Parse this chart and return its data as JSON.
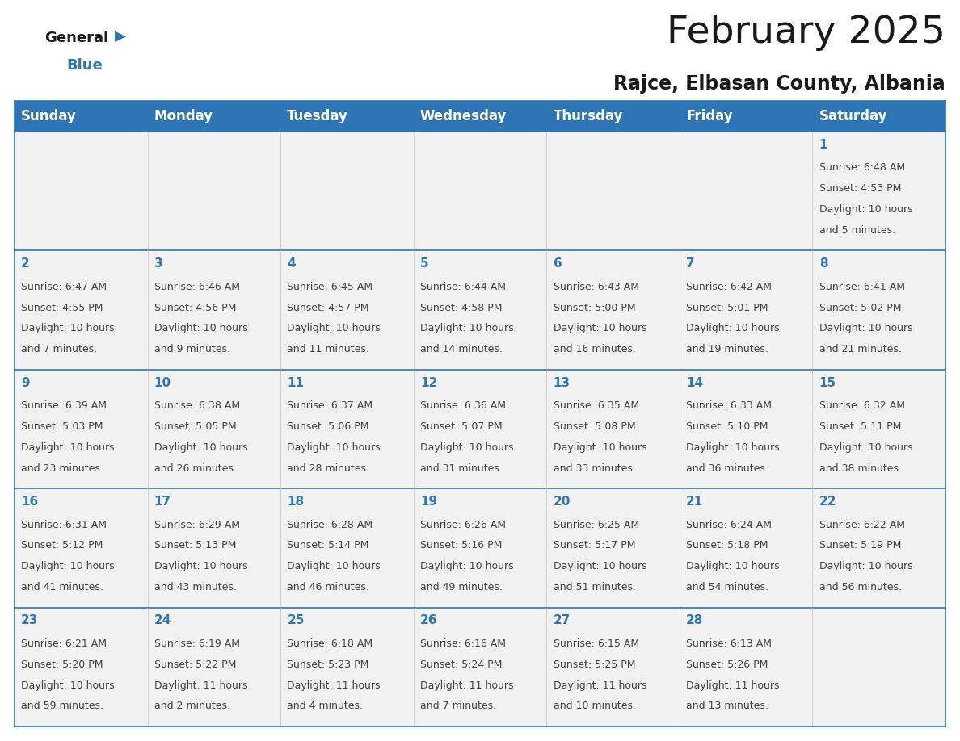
{
  "title": "February 2025",
  "subtitle": "Rajce, Elbasan County, Albania",
  "header_bg": "#2E75B6",
  "header_text_color": "#FFFFFF",
  "cell_border_color": "#2E75B6",
  "day_number_color": "#2E75B6",
  "info_text_color": "#404040",
  "bg_color": "#FFFFFF",
  "cell_bg_color": "#F2F2F2",
  "days_of_week": [
    "Sunday",
    "Monday",
    "Tuesday",
    "Wednesday",
    "Thursday",
    "Friday",
    "Saturday"
  ],
  "title_fontsize": 34,
  "subtitle_fontsize": 17,
  "header_fontsize": 12,
  "day_num_fontsize": 11,
  "info_fontsize": 9,
  "calendar_data": [
    [
      null,
      null,
      null,
      null,
      null,
      null,
      {
        "day": 1,
        "sunrise": "6:48 AM",
        "sunset": "4:53 PM",
        "daylight_h": "10 hours",
        "daylight_m": "and 5 minutes."
      }
    ],
    [
      {
        "day": 2,
        "sunrise": "6:47 AM",
        "sunset": "4:55 PM",
        "daylight_h": "10 hours",
        "daylight_m": "and 7 minutes."
      },
      {
        "day": 3,
        "sunrise": "6:46 AM",
        "sunset": "4:56 PM",
        "daylight_h": "10 hours",
        "daylight_m": "and 9 minutes."
      },
      {
        "day": 4,
        "sunrise": "6:45 AM",
        "sunset": "4:57 PM",
        "daylight_h": "10 hours",
        "daylight_m": "and 11 minutes."
      },
      {
        "day": 5,
        "sunrise": "6:44 AM",
        "sunset": "4:58 PM",
        "daylight_h": "10 hours",
        "daylight_m": "and 14 minutes."
      },
      {
        "day": 6,
        "sunrise": "6:43 AM",
        "sunset": "5:00 PM",
        "daylight_h": "10 hours",
        "daylight_m": "and 16 minutes."
      },
      {
        "day": 7,
        "sunrise": "6:42 AM",
        "sunset": "5:01 PM",
        "daylight_h": "10 hours",
        "daylight_m": "and 19 minutes."
      },
      {
        "day": 8,
        "sunrise": "6:41 AM",
        "sunset": "5:02 PM",
        "daylight_h": "10 hours",
        "daylight_m": "and 21 minutes."
      }
    ],
    [
      {
        "day": 9,
        "sunrise": "6:39 AM",
        "sunset": "5:03 PM",
        "daylight_h": "10 hours",
        "daylight_m": "and 23 minutes."
      },
      {
        "day": 10,
        "sunrise": "6:38 AM",
        "sunset": "5:05 PM",
        "daylight_h": "10 hours",
        "daylight_m": "and 26 minutes."
      },
      {
        "day": 11,
        "sunrise": "6:37 AM",
        "sunset": "5:06 PM",
        "daylight_h": "10 hours",
        "daylight_m": "and 28 minutes."
      },
      {
        "day": 12,
        "sunrise": "6:36 AM",
        "sunset": "5:07 PM",
        "daylight_h": "10 hours",
        "daylight_m": "and 31 minutes."
      },
      {
        "day": 13,
        "sunrise": "6:35 AM",
        "sunset": "5:08 PM",
        "daylight_h": "10 hours",
        "daylight_m": "and 33 minutes."
      },
      {
        "day": 14,
        "sunrise": "6:33 AM",
        "sunset": "5:10 PM",
        "daylight_h": "10 hours",
        "daylight_m": "and 36 minutes."
      },
      {
        "day": 15,
        "sunrise": "6:32 AM",
        "sunset": "5:11 PM",
        "daylight_h": "10 hours",
        "daylight_m": "and 38 minutes."
      }
    ],
    [
      {
        "day": 16,
        "sunrise": "6:31 AM",
        "sunset": "5:12 PM",
        "daylight_h": "10 hours",
        "daylight_m": "and 41 minutes."
      },
      {
        "day": 17,
        "sunrise": "6:29 AM",
        "sunset": "5:13 PM",
        "daylight_h": "10 hours",
        "daylight_m": "and 43 minutes."
      },
      {
        "day": 18,
        "sunrise": "6:28 AM",
        "sunset": "5:14 PM",
        "daylight_h": "10 hours",
        "daylight_m": "and 46 minutes."
      },
      {
        "day": 19,
        "sunrise": "6:26 AM",
        "sunset": "5:16 PM",
        "daylight_h": "10 hours",
        "daylight_m": "and 49 minutes."
      },
      {
        "day": 20,
        "sunrise": "6:25 AM",
        "sunset": "5:17 PM",
        "daylight_h": "10 hours",
        "daylight_m": "and 51 minutes."
      },
      {
        "day": 21,
        "sunrise": "6:24 AM",
        "sunset": "5:18 PM",
        "daylight_h": "10 hours",
        "daylight_m": "and 54 minutes."
      },
      {
        "day": 22,
        "sunrise": "6:22 AM",
        "sunset": "5:19 PM",
        "daylight_h": "10 hours",
        "daylight_m": "and 56 minutes."
      }
    ],
    [
      {
        "day": 23,
        "sunrise": "6:21 AM",
        "sunset": "5:20 PM",
        "daylight_h": "10 hours",
        "daylight_m": "and 59 minutes."
      },
      {
        "day": 24,
        "sunrise": "6:19 AM",
        "sunset": "5:22 PM",
        "daylight_h": "11 hours",
        "daylight_m": "and 2 minutes."
      },
      {
        "day": 25,
        "sunrise": "6:18 AM",
        "sunset": "5:23 PM",
        "daylight_h": "11 hours",
        "daylight_m": "and 4 minutes."
      },
      {
        "day": 26,
        "sunrise": "6:16 AM",
        "sunset": "5:24 PM",
        "daylight_h": "11 hours",
        "daylight_m": "and 7 minutes."
      },
      {
        "day": 27,
        "sunrise": "6:15 AM",
        "sunset": "5:25 PM",
        "daylight_h": "11 hours",
        "daylight_m": "and 10 minutes."
      },
      {
        "day": 28,
        "sunrise": "6:13 AM",
        "sunset": "5:26 PM",
        "daylight_h": "11 hours",
        "daylight_m": "and 13 minutes."
      },
      null
    ]
  ]
}
